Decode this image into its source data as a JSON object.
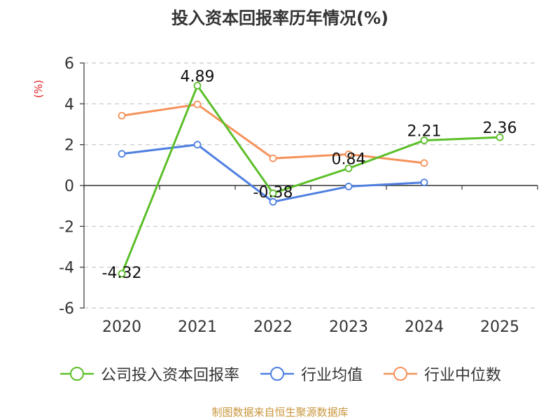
{
  "chart_data": {
    "type": "line",
    "title": "投入资本回报率历年情况(%)",
    "ylabel": "(%)",
    "categories": [
      "2020",
      "2021",
      "2022",
      "2023",
      "2024",
      "2025"
    ],
    "ylim": [
      -6,
      6
    ],
    "yticks": [
      "6",
      "4",
      "2",
      "0",
      "-2",
      "-4",
      "-6"
    ],
    "grid": true,
    "legend_position": "bottom",
    "series": [
      {
        "name": "公司投入资本回报率",
        "color": "#5cbf2a",
        "values": [
          -4.32,
          4.89,
          -0.38,
          0.84,
          2.21,
          2.36
        ],
        "labels": [
          "-4.32",
          "4.89",
          "-0.38",
          "0.84",
          "2.21",
          "2.36"
        ]
      },
      {
        "name": "行业均值",
        "color": "#4f7fe0",
        "values": [
          1.55,
          2.0,
          -0.8,
          -0.05,
          0.15,
          null
        ]
      },
      {
        "name": "行业中位数",
        "color": "#f5925a",
        "values": [
          3.42,
          3.97,
          1.33,
          1.53,
          1.1,
          null
        ]
      }
    ]
  },
  "source": "制图数据来自恒生聚源数据库"
}
